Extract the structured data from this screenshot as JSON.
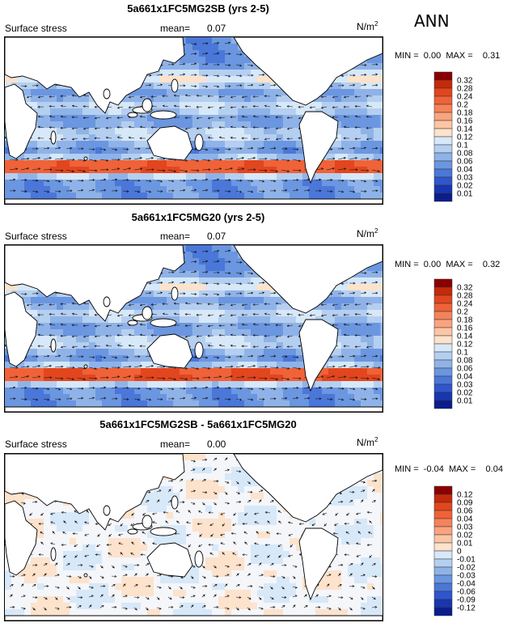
{
  "season": "ANN",
  "units": {
    "base": "N/m",
    "sup": "2"
  },
  "chart_data": [
    {
      "type": "heatmap",
      "title": "5a661x1FC5MG2SB (yrs 2-5)",
      "variable": "Surface stress",
      "mean_label": "mean=",
      "mean": "0.07",
      "min_label": "MIN =",
      "min": "0.00",
      "max_label": "MAX =",
      "max": "0.31",
      "levels": [
        "0.32",
        "0.28",
        "0.24",
        "0.2",
        "0.18",
        "0.16",
        "0.14",
        "0.12",
        "0.1",
        "0.08",
        "0.06",
        "0.04",
        "0.03",
        "0.02",
        "0.01"
      ],
      "colors": [
        "#8b0000",
        "#c42a0c",
        "#e2461e",
        "#f06238",
        "#f5835a",
        "#f9a47e",
        "#fcc6a6",
        "#fde2cc",
        "#d7e8f8",
        "#b5cff0",
        "#8fb3e8",
        "#6b96e0",
        "#4a77d8",
        "#2f56cc",
        "#1836b0",
        "#0b1d8c"
      ]
    },
    {
      "type": "heatmap",
      "title": "5a661x1FC5MG20 (yrs 2-5)",
      "variable": "Surface stress",
      "mean_label": "mean=",
      "mean": "0.07",
      "min_label": "MIN =",
      "min": "0.00",
      "max_label": "MAX =",
      "max": "0.32",
      "levels": [
        "0.32",
        "0.28",
        "0.24",
        "0.2",
        "0.18",
        "0.16",
        "0.14",
        "0.12",
        "0.1",
        "0.08",
        "0.06",
        "0.04",
        "0.03",
        "0.02",
        "0.01"
      ],
      "colors": [
        "#8b0000",
        "#c42a0c",
        "#e2461e",
        "#f06238",
        "#f5835a",
        "#f9a47e",
        "#fcc6a6",
        "#fde2cc",
        "#d7e8f8",
        "#b5cff0",
        "#8fb3e8",
        "#6b96e0",
        "#4a77d8",
        "#2f56cc",
        "#1836b0",
        "#0b1d8c"
      ]
    },
    {
      "type": "heatmap",
      "title": "5a661x1FC5MG2SB - 5a661x1FC5MG20",
      "variable": "Surface stress",
      "mean_label": "mean=",
      "mean": "0.00",
      "min_label": "MIN =",
      "min": "-0.04",
      "max_label": "MAX =",
      "max": "0.04",
      "levels": [
        "0.12",
        "0.09",
        "0.06",
        "0.04",
        "0.03",
        "0.02",
        "0.01",
        "0",
        "-0.01",
        "-0.02",
        "-0.03",
        "-0.04",
        "-0.06",
        "-0.09",
        "-0.12"
      ],
      "colors": [
        "#8b0000",
        "#c42a0c",
        "#e2461e",
        "#f06238",
        "#f5835a",
        "#f9a47e",
        "#fcc6a6",
        "#fde2cc",
        "#d7e8f8",
        "#b5cff0",
        "#8fb3e8",
        "#6b96e0",
        "#4a77d8",
        "#2f56cc",
        "#1836b0",
        "#0b1d8c"
      ]
    }
  ]
}
